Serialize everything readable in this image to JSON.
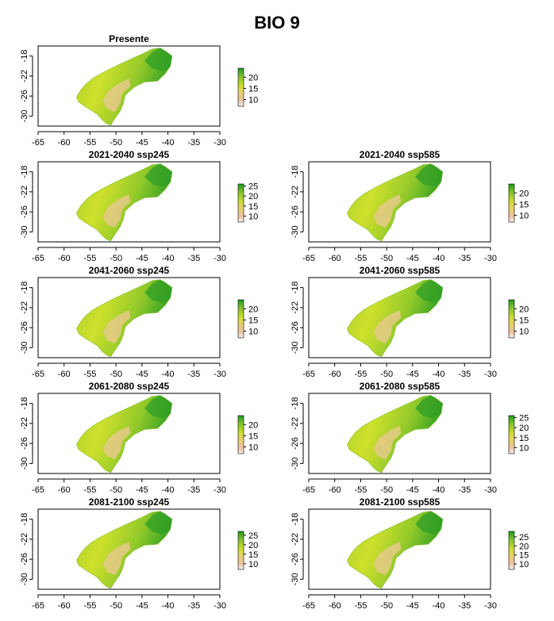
{
  "title": "BIO 9",
  "colors": {
    "high": "#1e9b1e",
    "mid": "#d8e32a",
    "low": "#f2c6a8",
    "frame": "#000000"
  },
  "chart_data": [
    {
      "type": "heatmap",
      "title": "Presente",
      "xlim": [
        -65,
        -30
      ],
      "ylim": [
        -32,
        -16
      ],
      "x_ticks": [
        "-65",
        "-60",
        "-55",
        "-50",
        "-45",
        "-40",
        "-35",
        "-30"
      ],
      "y_ticks": [
        "-18",
        "-22",
        "-26",
        "-30"
      ],
      "legend_ticks": [
        "20",
        "15",
        "10"
      ],
      "legend_range": [
        7,
        24
      ]
    },
    {
      "type": "heatmap",
      "title": "2021-2040 ssp245",
      "xlim": [
        -65,
        -30
      ],
      "ylim": [
        -32,
        -16
      ],
      "x_ticks": [
        "-65",
        "-60",
        "-55",
        "-50",
        "-45",
        "-40",
        "-35",
        "-30"
      ],
      "y_ticks": [
        "-18",
        "-22",
        "-26",
        "-30"
      ],
      "legend_ticks": [
        "25",
        "20",
        "15",
        "10"
      ],
      "legend_range": [
        7,
        26
      ]
    },
    {
      "type": "heatmap",
      "title": "2021-2040 ssp585",
      "xlim": [
        -65,
        -30
      ],
      "ylim": [
        -32,
        -16
      ],
      "x_ticks": [
        "-65",
        "-60",
        "-55",
        "-50",
        "-45",
        "-40",
        "-35",
        "-30"
      ],
      "y_ticks": [
        "-18",
        "-22",
        "-26",
        "-30"
      ],
      "legend_ticks": [
        "20",
        "15",
        "10"
      ],
      "legend_range": [
        7,
        24
      ]
    },
    {
      "type": "heatmap",
      "title": "2041-2060 ssp245",
      "xlim": [
        -65,
        -30
      ],
      "ylim": [
        -32,
        -16
      ],
      "x_ticks": [
        "-65",
        "-60",
        "-55",
        "-50",
        "-45",
        "-40",
        "-35",
        "-30"
      ],
      "y_ticks": [
        "-18",
        "-22",
        "-26",
        "-30"
      ],
      "legend_ticks": [
        "20",
        "15",
        "10"
      ],
      "legend_range": [
        7,
        24
      ]
    },
    {
      "type": "heatmap",
      "title": "2041-2060 ssp585",
      "xlim": [
        -65,
        -30
      ],
      "ylim": [
        -32,
        -16
      ],
      "x_ticks": [
        "-65",
        "-60",
        "-55",
        "-50",
        "-45",
        "-40",
        "-35",
        "-30"
      ],
      "y_ticks": [
        "-18",
        "-22",
        "-26",
        "-30"
      ],
      "legend_ticks": [
        "20",
        "15",
        "10"
      ],
      "legend_range": [
        7,
        24
      ]
    },
    {
      "type": "heatmap",
      "title": "2061-2080 ssp245",
      "xlim": [
        -65,
        -30
      ],
      "ylim": [
        -32,
        -16
      ],
      "x_ticks": [
        "-65",
        "-60",
        "-55",
        "-50",
        "-45",
        "-40",
        "-35",
        "-30"
      ],
      "y_ticks": [
        "-18",
        "-22",
        "-26",
        "-30"
      ],
      "legend_ticks": [
        "20",
        "15",
        "10"
      ],
      "legend_range": [
        7,
        24
      ]
    },
    {
      "type": "heatmap",
      "title": "2061-2080 ssp585",
      "xlim": [
        -65,
        -30
      ],
      "ylim": [
        -32,
        -16
      ],
      "x_ticks": [
        "-65",
        "-60",
        "-55",
        "-50",
        "-45",
        "-40",
        "-35",
        "-30"
      ],
      "y_ticks": [
        "-18",
        "-22",
        "-26",
        "-30"
      ],
      "legend_ticks": [
        "25",
        "20",
        "15",
        "10"
      ],
      "legend_range": [
        7,
        26
      ]
    },
    {
      "type": "heatmap",
      "title": "2081-2100 ssp245",
      "xlim": [
        -65,
        -30
      ],
      "ylim": [
        -32,
        -16
      ],
      "x_ticks": [
        "-65",
        "-60",
        "-55",
        "-50",
        "-45",
        "-40",
        "-35",
        "-30"
      ],
      "y_ticks": [
        "-18",
        "-22",
        "-26",
        "-30"
      ],
      "legend_ticks": [
        "25",
        "20",
        "15",
        "10"
      ],
      "legend_range": [
        7,
        27
      ]
    },
    {
      "type": "heatmap",
      "title": "2081-2100 ssp585",
      "xlim": [
        -65,
        -30
      ],
      "ylim": [
        -32,
        -16
      ],
      "x_ticks": [
        "-65",
        "-60",
        "-55",
        "-50",
        "-45",
        "-40",
        "-35",
        "-30"
      ],
      "y_ticks": [
        "-18",
        "-22",
        "-26",
        "-30"
      ],
      "legend_ticks": [
        "25",
        "20",
        "15",
        "10"
      ],
      "legend_range": [
        7,
        28
      ]
    }
  ]
}
